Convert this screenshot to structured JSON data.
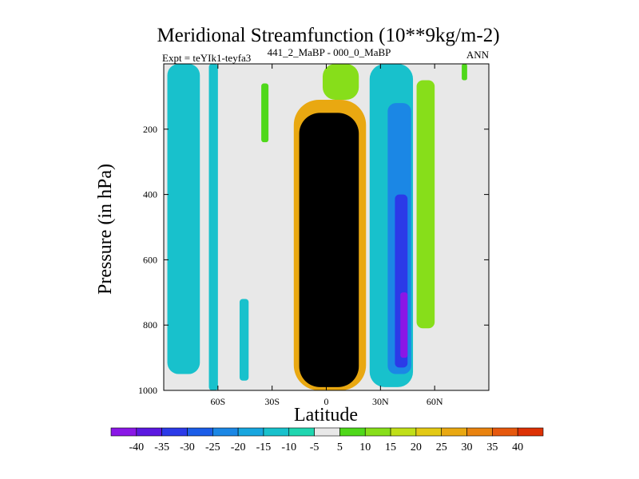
{
  "chart_data": {
    "type": "heatmap",
    "title": "Meridional Streamfunction (10**9kg/m-2)",
    "subtitle_left": "Expt = teYIk1-teyfa3",
    "subtitle_center": "441_2_MaBP - 000_0_MaBP",
    "subtitle_right": "ANN",
    "xlabel": "Latitude",
    "ylabel": "Pressure (in hPa)",
    "xlim": [
      -90,
      90
    ],
    "ylim": [
      1000,
      0
    ],
    "xticks": [
      {
        "value": -60,
        "label": "60S"
      },
      {
        "value": -30,
        "label": "30S"
      },
      {
        "value": 0,
        "label": "0"
      },
      {
        "value": 30,
        "label": "30N"
      },
      {
        "value": 60,
        "label": "60N"
      }
    ],
    "yticks": [
      {
        "value": 200,
        "label": "200"
      },
      {
        "value": 400,
        "label": "400"
      },
      {
        "value": 600,
        "label": "600"
      },
      {
        "value": 800,
        "label": "800"
      },
      {
        "value": 1000,
        "label": "1000"
      }
    ],
    "colorbar": {
      "labels": [
        "-40",
        "-35",
        "-30",
        "-25",
        "-20",
        "-15",
        "-10",
        "-5",
        "5",
        "10",
        "15",
        "20",
        "25",
        "30",
        "35",
        "40"
      ],
      "colors": [
        "#8a17e6",
        "#5b18e0",
        "#2b3ae8",
        "#1b5de8",
        "#1b87e5",
        "#17a6df",
        "#18c1cc",
        "#20d6b0",
        "#e8e8e8",
        "#4fd81a",
        "#87de1a",
        "#c0df18",
        "#e3c914",
        "#e9a811",
        "#e9830f",
        "#e6580d",
        "#dd3105"
      ]
    },
    "regions": [
      {
        "lat": [
          -88,
          -70
        ],
        "p": [
          0,
          950
        ],
        "level": -2
      },
      {
        "lat": [
          -65,
          -60
        ],
        "p": [
          0,
          1000
        ],
        "level": -2
      },
      {
        "lat": [
          -48,
          -43
        ],
        "p": [
          720,
          970
        ],
        "level": -2
      },
      {
        "lat": [
          -36,
          -32
        ],
        "p": [
          60,
          240
        ],
        "level": 1
      },
      {
        "lat": [
          -18,
          22
        ],
        "p": [
          110,
          1000
        ],
        "level": 5
      },
      {
        "lat": [
          -15,
          18
        ],
        "p": [
          150,
          990
        ],
        "level": 9
      },
      {
        "lat": [
          -12,
          12
        ],
        "p": [
          200,
          970
        ],
        "level": 14
      },
      {
        "lat": [
          -2,
          18
        ],
        "p": [
          0,
          110
        ],
        "level": 2
      },
      {
        "lat": [
          24,
          48
        ],
        "p": [
          0,
          990
        ],
        "level": -2
      },
      {
        "lat": [
          34,
          47
        ],
        "p": [
          120,
          950
        ],
        "level": -4
      },
      {
        "lat": [
          38,
          45
        ],
        "p": [
          400,
          930
        ],
        "level": -6
      },
      {
        "lat": [
          41,
          45
        ],
        "p": [
          700,
          900
        ],
        "level": -8
      },
      {
        "lat": [
          50,
          60
        ],
        "p": [
          50,
          810
        ],
        "level": 2
      },
      {
        "lat": [
          75,
          78
        ],
        "p": [
          0,
          50
        ],
        "level": 1
      }
    ]
  }
}
